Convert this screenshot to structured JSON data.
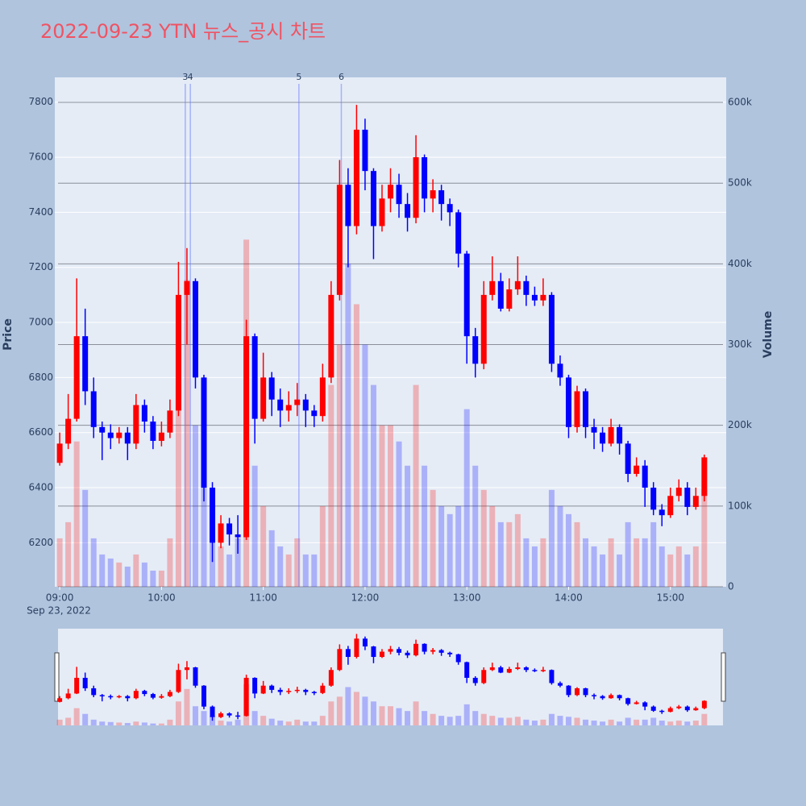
{
  "chart_data": {
    "type": "candlestick",
    "title": "2022-09-23 YTN 뉴스_공시 차트",
    "y_label": "Price",
    "y2_label": "Volume",
    "x_date_label": "Sep 23, 2022",
    "increasing_color": "#ff0000",
    "decreasing_color": "#0000ff",
    "x": [
      "2022-09-23 09:00",
      "2022-09-23 09:05",
      "2022-09-23 09:10",
      "2022-09-23 09:15",
      "2022-09-23 09:20",
      "2022-09-23 09:25",
      "2022-09-23 09:30",
      "2022-09-23 09:35",
      "2022-09-23 09:40",
      "2022-09-23 09:45",
      "2022-09-23 09:50",
      "2022-09-23 09:55",
      "2022-09-23 10:00",
      "2022-09-23 10:05",
      "2022-09-23 10:10",
      "2022-09-23 10:15",
      "2022-09-23 10:20",
      "2022-09-23 10:25",
      "2022-09-23 10:30",
      "2022-09-23 10:35",
      "2022-09-23 10:40",
      "2022-09-23 10:45",
      "2022-09-23 10:50",
      "2022-09-23 10:55",
      "2022-09-23 11:00",
      "2022-09-23 11:05",
      "2022-09-23 11:10",
      "2022-09-23 11:15",
      "2022-09-23 11:20",
      "2022-09-23 11:25",
      "2022-09-23 11:30",
      "2022-09-23 11:35",
      "2022-09-23 11:40",
      "2022-09-23 11:45",
      "2022-09-23 11:50",
      "2022-09-23 11:55",
      "2022-09-23 12:00",
      "2022-09-23 12:05",
      "2022-09-23 12:10",
      "2022-09-23 12:15",
      "2022-09-23 12:20",
      "2022-09-23 12:25",
      "2022-09-23 12:30",
      "2022-09-23 12:35",
      "2022-09-23 12:40",
      "2022-09-23 12:45",
      "2022-09-23 12:50",
      "2022-09-23 12:55",
      "2022-09-23 13:00",
      "2022-09-23 13:05",
      "2022-09-23 13:10",
      "2022-09-23 13:15",
      "2022-09-23 13:20",
      "2022-09-23 13:25",
      "2022-09-23 13:30",
      "2022-09-23 13:35",
      "2022-09-23 13:40",
      "2022-09-23 13:45",
      "2022-09-23 13:50",
      "2022-09-23 13:55",
      "2022-09-23 14:00",
      "2022-09-23 14:05",
      "2022-09-23 14:10",
      "2022-09-23 14:15",
      "2022-09-23 14:20",
      "2022-09-23 14:25",
      "2022-09-23 14:30",
      "2022-09-23 14:35",
      "2022-09-23 14:40",
      "2022-09-23 14:45",
      "2022-09-23 14:50",
      "2022-09-23 14:55",
      "2022-09-23 15:00",
      "2022-09-23 15:05",
      "2022-09-23 15:10",
      "2022-09-23 15:15",
      "2022-09-23 15:20"
    ],
    "open": [
      6490,
      6560,
      6650,
      6950,
      6750,
      6620,
      6600,
      6580,
      6600,
      6560,
      6700,
      6640,
      6570,
      6600,
      6680,
      7100,
      7150,
      6800,
      6400,
      6200,
      6270,
      6230,
      6220,
      6950,
      6650,
      6800,
      6720,
      6680,
      6700,
      6720,
      6680,
      6660,
      6800,
      7100,
      7500,
      7350,
      7700,
      7550,
      7350,
      7450,
      7500,
      7430,
      7380,
      7600,
      7450,
      7480,
      7430,
      7400,
      7250,
      6950,
      6850,
      7100,
      7150,
      7050,
      7120,
      7150,
      7100,
      7080,
      7100,
      6850,
      6800,
      6620,
      6750,
      6620,
      6600,
      6560,
      6620,
      6560,
      6450,
      6480,
      6400,
      6320,
      6300,
      6370,
      6400,
      6330,
      6370
    ],
    "high": [
      6600,
      6740,
      7160,
      7050,
      6800,
      6640,
      6630,
      6620,
      6620,
      6740,
      6720,
      6660,
      6640,
      6720,
      7220,
      7270,
      7160,
      6810,
      6420,
      6300,
      6290,
      6300,
      7010,
      6960,
      6890,
      6820,
      6760,
      6750,
      6780,
      6740,
      6700,
      6850,
      7150,
      7590,
      7560,
      7790,
      7740,
      7560,
      7500,
      7560,
      7540,
      7470,
      7680,
      7610,
      7520,
      7500,
      7450,
      7410,
      7260,
      6980,
      7150,
      7240,
      7180,
      7160,
      7240,
      7170,
      7130,
      7160,
      7110,
      6880,
      6810,
      6770,
      6760,
      6650,
      6620,
      6650,
      6630,
      6570,
      6510,
      6500,
      6420,
      6340,
      6400,
      6430,
      6420,
      6400,
      6520
    ],
    "low": [
      6480,
      6540,
      6640,
      6700,
      6580,
      6500,
      6540,
      6560,
      6500,
      6540,
      6600,
      6540,
      6550,
      6580,
      6660,
      6920,
      6760,
      6350,
      6130,
      6180,
      6190,
      6160,
      6210,
      6560,
      6640,
      6660,
      6620,
      6640,
      6660,
      6620,
      6620,
      6640,
      6780,
      7080,
      7200,
      7320,
      7480,
      7230,
      7330,
      7400,
      7380,
      7330,
      7360,
      7400,
      7400,
      7370,
      7350,
      7200,
      6850,
      6800,
      6830,
      7080,
      7040,
      7040,
      7100,
      7060,
      7060,
      7060,
      6820,
      6770,
      6580,
      6600,
      6580,
      6540,
      6530,
      6550,
      6520,
      6420,
      6440,
      6330,
      6300,
      6260,
      6290,
      6350,
      6300,
      6320,
      6350
    ],
    "close": [
      6560,
      6650,
      6950,
      6750,
      6620,
      6600,
      6580,
      6600,
      6560,
      6700,
      6640,
      6570,
      6600,
      6680,
      7100,
      7150,
      6800,
      6400,
      6200,
      6270,
      6230,
      6220,
      6950,
      6650,
      6800,
      6720,
      6680,
      6700,
      6720,
      6680,
      6660,
      6800,
      7100,
      7500,
      7350,
      7700,
      7550,
      7350,
      7450,
      7500,
      7430,
      7380,
      7600,
      7450,
      7480,
      7430,
      7400,
      7250,
      6950,
      6850,
      7100,
      7150,
      7050,
      7120,
      7150,
      7100,
      7080,
      7100,
      6850,
      6800,
      6620,
      6750,
      6620,
      6600,
      6560,
      6620,
      6560,
      6450,
      6480,
      6400,
      6320,
      6300,
      6370,
      6400,
      6330,
      6370,
      6510
    ],
    "volume": [
      60000,
      80000,
      180000,
      120000,
      60000,
      40000,
      35000,
      30000,
      25000,
      40000,
      30000,
      20000,
      20000,
      60000,
      250000,
      380000,
      200000,
      150000,
      100000,
      50000,
      40000,
      60000,
      430000,
      150000,
      100000,
      70000,
      50000,
      40000,
      60000,
      40000,
      40000,
      100000,
      250000,
      300000,
      400000,
      350000,
      300000,
      250000,
      200000,
      200000,
      180000,
      150000,
      250000,
      150000,
      120000,
      100000,
      90000,
      100000,
      220000,
      150000,
      120000,
      100000,
      80000,
      80000,
      90000,
      60000,
      50000,
      60000,
      120000,
      100000,
      90000,
      80000,
      60000,
      50000,
      40000,
      60000,
      40000,
      80000,
      60000,
      60000,
      80000,
      50000,
      40000,
      50000,
      40000,
      50000,
      120000
    ],
    "events": [
      {
        "x": "2022-09-23 10:14",
        "label": "3"
      },
      {
        "x": "2022-09-23 10:17",
        "label": "4"
      },
      {
        "x": "2022-09-23 11:21",
        "label": "5"
      },
      {
        "x": "2022-09-23 11:46",
        "label": "6"
      }
    ],
    "xlim": [
      "2022-09-23 08:59",
      "2022-09-23 15:31"
    ],
    "xticks": [
      {
        "value": "2022-09-23 09:00",
        "label": "09:00"
      },
      {
        "value": "2022-09-23 10:00",
        "label": "10:00"
      },
      {
        "value": "2022-09-23 11:00",
        "label": "11:00"
      },
      {
        "value": "2022-09-23 12:00",
        "label": "12:00"
      },
      {
        "value": "2022-09-23 13:00",
        "label": "13:00"
      },
      {
        "value": "2022-09-23 14:00",
        "label": "14:00"
      },
      {
        "value": "2022-09-23 15:00",
        "label": "15:00"
      }
    ],
    "ylim": [
      6040,
      7890
    ],
    "yticks": [
      6200,
      6400,
      6600,
      6800,
      7000,
      7200,
      7400,
      7600,
      7800
    ],
    "y2lim": [
      0,
      631000
    ],
    "y2ticks": [
      0,
      {
        "value": 100000,
        "label": "100k"
      },
      {
        "value": 200000,
        "label": "200k"
      },
      {
        "value": 300000,
        "label": "300k"
      },
      {
        "value": 400000,
        "label": "400k"
      },
      {
        "value": 500000,
        "label": "500k"
      },
      {
        "value": 600000,
        "label": "600k"
      }
    ],
    "rangeslider": true
  }
}
